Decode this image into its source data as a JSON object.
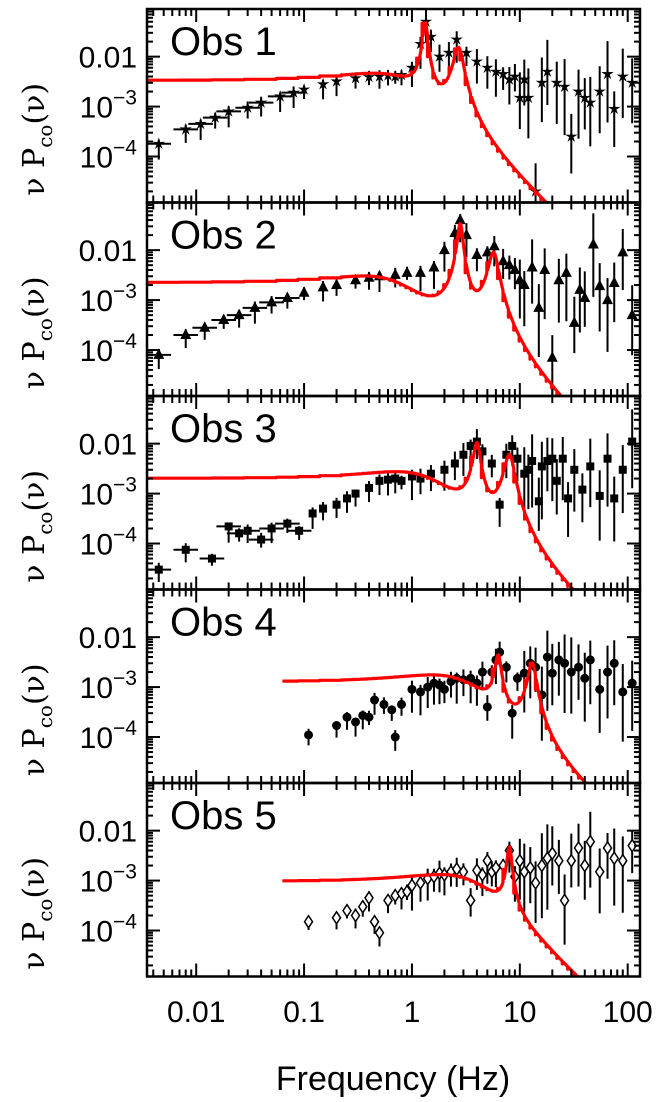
{
  "chart_data": {
    "type": "scatter",
    "xlabel": "Frequency (Hz)",
    "ylabel": "ν P_co(ν)",
    "xscale": "log",
    "yscale": "log",
    "xlim": [
      0.0035,
      130
    ],
    "ylim": [
      1.2e-05,
      0.09
    ],
    "x_ticks": [
      "0.01",
      "0.1",
      "1",
      "10",
      "100"
    ],
    "x_tick_values": [
      0.01,
      0.1,
      1,
      10,
      100
    ],
    "y_ticks": [
      {
        "base": "0.01",
        "exp": ""
      },
      {
        "base": "10",
        "exp": "−3"
      },
      {
        "base": "10",
        "exp": "−4"
      }
    ],
    "y_tick_values": [
      0.01,
      0.001,
      0.0001
    ],
    "colors": {
      "model": "#ff0000",
      "data": "#000000"
    },
    "panels": [
      {
        "label": "Obs 1",
        "marker": "star",
        "fmin": 0.0035,
        "points": [
          [
            0.0045,
            0.00018
          ],
          [
            0.008,
            0.00035
          ],
          [
            0.011,
            0.00045
          ],
          [
            0.015,
            0.0006
          ],
          [
            0.02,
            0.0008
          ],
          [
            0.03,
            0.00095
          ],
          [
            0.04,
            0.0012
          ],
          [
            0.06,
            0.0016
          ],
          [
            0.08,
            0.0019
          ],
          [
            0.1,
            0.0022
          ],
          [
            0.15,
            0.0028
          ],
          [
            0.2,
            0.0032
          ],
          [
            0.3,
            0.0037
          ],
          [
            0.4,
            0.0039
          ],
          [
            0.5,
            0.004
          ],
          [
            0.6,
            0.0042
          ],
          [
            0.7,
            0.004
          ],
          [
            0.8,
            0.0043
          ],
          [
            1.0,
            0.006
          ],
          [
            1.2,
            0.018
          ],
          [
            1.35,
            0.05
          ],
          [
            1.5,
            0.025
          ],
          [
            1.8,
            0.01
          ],
          [
            2.2,
            0.012
          ],
          [
            2.6,
            0.022
          ],
          [
            3.2,
            0.012
          ],
          [
            4,
            0.008
          ],
          [
            5,
            0.006
          ],
          [
            6,
            0.005
          ],
          [
            7,
            0.0045
          ],
          [
            8,
            0.0035
          ],
          [
            9,
            0.004
          ],
          [
            10,
            0.0015
          ],
          [
            11,
            0.0035
          ],
          [
            12,
            0.0015
          ],
          [
            14,
            2e-05
          ],
          [
            16,
            0.003
          ],
          [
            18,
            0.005
          ],
          [
            22,
            0.003
          ],
          [
            26,
            0.0025
          ],
          [
            30,
            0.00025
          ],
          [
            35,
            0.002
          ],
          [
            40,
            0.0015
          ],
          [
            45,
            0.0012
          ],
          [
            55,
            0.002
          ],
          [
            65,
            0.0045
          ],
          [
            75,
            0.0009
          ],
          [
            90,
            0.004
          ],
          [
            110,
            0.003
          ]
        ],
        "model": {
          "broad": [
            {
              "nu": 0.4,
              "Q": 0.3,
              "a": 0.0042
            }
          ],
          "qpo": [
            {
              "nu": 1.33,
              "Q": 10,
              "a": 0.047
            },
            {
              "nu": 2.7,
              "Q": 5,
              "a": 0.015
            }
          ]
        }
      },
      {
        "label": "Obs 2",
        "marker": "triangle",
        "fmin": 0.0035,
        "points": [
          [
            0.0045,
            8e-05
          ],
          [
            0.008,
            0.0002
          ],
          [
            0.012,
            0.00028
          ],
          [
            0.018,
            0.0004
          ],
          [
            0.025,
            0.0005
          ],
          [
            0.035,
            0.0007
          ],
          [
            0.05,
            0.0009
          ],
          [
            0.07,
            0.0011
          ],
          [
            0.1,
            0.0014
          ],
          [
            0.15,
            0.0018
          ],
          [
            0.2,
            0.002
          ],
          [
            0.3,
            0.0025
          ],
          [
            0.4,
            0.0028
          ],
          [
            0.5,
            0.003
          ],
          [
            0.7,
            0.0032
          ],
          [
            0.9,
            0.0035
          ],
          [
            1.2,
            0.0035
          ],
          [
            1.6,
            0.0045
          ],
          [
            2,
            0.01
          ],
          [
            2.5,
            0.022
          ],
          [
            2.8,
            0.04
          ],
          [
            3.2,
            0.02
          ],
          [
            4,
            0.008
          ],
          [
            5,
            0.009
          ],
          [
            5.8,
            0.012
          ],
          [
            7,
            0.006
          ],
          [
            8,
            0.005
          ],
          [
            9,
            0.004
          ],
          [
            10,
            0.0025
          ],
          [
            11,
            0.002
          ],
          [
            13,
            0.0045
          ],
          [
            15,
            0.0007
          ],
          [
            17,
            0.004
          ],
          [
            20,
            7e-05
          ],
          [
            23,
            0.0025
          ],
          [
            27,
            0.0035
          ],
          [
            32,
            0.00035
          ],
          [
            36,
            0.0016
          ],
          [
            40,
            0.0011
          ],
          [
            48,
            0.013
          ],
          [
            55,
            0.0019
          ],
          [
            65,
            0.001
          ],
          [
            75,
            0.0022
          ],
          [
            90,
            0.009
          ],
          [
            110,
            0.0005
          ]
        ],
        "model": {
          "broad": [
            {
              "nu": 0.35,
              "Q": 0.3,
              "a": 0.0028
            }
          ],
          "qpo": [
            {
              "nu": 2.8,
              "Q": 9,
              "a": 0.034
            },
            {
              "nu": 5.7,
              "Q": 5,
              "a": 0.009
            }
          ]
        }
      },
      {
        "label": "Obs 3",
        "marker": "square",
        "fmin": 0.0035,
        "points": [
          [
            0.0045,
            3e-05
          ],
          [
            0.008,
            7.5e-05
          ],
          [
            0.014,
            5e-05
          ],
          [
            0.02,
            0.00022
          ],
          [
            0.025,
            0.00016
          ],
          [
            0.03,
            0.00018
          ],
          [
            0.04,
            0.00012
          ],
          [
            0.05,
            0.0002
          ],
          [
            0.07,
            0.00025
          ],
          [
            0.09,
            0.00018
          ],
          [
            0.12,
            0.0004
          ],
          [
            0.15,
            0.0005
          ],
          [
            0.2,
            0.0006
          ],
          [
            0.25,
            0.0008
          ],
          [
            0.3,
            0.001
          ],
          [
            0.4,
            0.0013
          ],
          [
            0.5,
            0.0018
          ],
          [
            0.6,
            0.0019
          ],
          [
            0.7,
            0.002
          ],
          [
            0.8,
            0.0018
          ],
          [
            1.0,
            0.0022
          ],
          [
            1.2,
            0.002
          ],
          [
            1.5,
            0.0025
          ],
          [
            2,
            0.003
          ],
          [
            2.5,
            0.004
          ],
          [
            3,
            0.006
          ],
          [
            3.5,
            0.009
          ],
          [
            4,
            0.011
          ],
          [
            4.5,
            0.007
          ],
          [
            5.5,
            0.004
          ],
          [
            6.5,
            0.0006
          ],
          [
            7.5,
            0.006
          ],
          [
            8.5,
            0.009
          ],
          [
            9.5,
            0.005
          ],
          [
            11,
            0.0025
          ],
          [
            12,
            0.003
          ],
          [
            13,
            0.0045
          ],
          [
            15,
            0.0007
          ],
          [
            16,
            0.0035
          ],
          [
            18,
            0.0045
          ],
          [
            20,
            0.005
          ],
          [
            22,
            0.0018
          ],
          [
            25,
            0.005
          ],
          [
            28,
            0.0008
          ],
          [
            32,
            0.003
          ],
          [
            38,
            0.0012
          ],
          [
            45,
            0.0035
          ],
          [
            55,
            0.0009
          ],
          [
            65,
            0.005
          ],
          [
            75,
            0.0008
          ],
          [
            90,
            0.003
          ],
          [
            110,
            0.011
          ]
        ],
        "model": {
          "broad": [
            {
              "nu": 0.7,
              "Q": 0.3,
              "a": 0.0026
            }
          ],
          "qpo": [
            {
              "nu": 4.0,
              "Q": 7,
              "a": 0.01
            },
            {
              "nu": 8.0,
              "Q": 5,
              "a": 0.006
            }
          ]
        }
      },
      {
        "label": "Obs 4",
        "marker": "circle",
        "fmin": 0.063,
        "points": [
          [
            0.11,
            0.00011
          ],
          [
            0.2,
            0.00017
          ],
          [
            0.25,
            0.00025
          ],
          [
            0.3,
            0.0002
          ],
          [
            0.35,
            0.00027
          ],
          [
            0.4,
            0.00025
          ],
          [
            0.45,
            0.00055
          ],
          [
            0.55,
            0.00045
          ],
          [
            0.65,
            0.00035
          ],
          [
            0.7,
            0.0001
          ],
          [
            0.8,
            0.00045
          ],
          [
            1.0,
            0.0009
          ],
          [
            1.2,
            0.0008
          ],
          [
            1.4,
            0.001
          ],
          [
            1.6,
            0.0012
          ],
          [
            1.8,
            0.0011
          ],
          [
            2,
            0.0009
          ],
          [
            2.3,
            0.0013
          ],
          [
            2.6,
            0.0015
          ],
          [
            3,
            0.0014
          ],
          [
            3.5,
            0.0015
          ],
          [
            4,
            0.0012
          ],
          [
            4.5,
            0.002
          ],
          [
            5,
            0.0004
          ],
          [
            5.5,
            0.002
          ],
          [
            6,
            0.0035
          ],
          [
            6.5,
            0.005
          ],
          [
            7.5,
            0.0025
          ],
          [
            8.5,
            0.0003
          ],
          [
            9.5,
            0.0015
          ],
          [
            11,
            0.0019
          ],
          [
            12.5,
            0.003
          ],
          [
            14,
            0.0025
          ],
          [
            16,
            0.0007
          ],
          [
            18,
            0.004
          ],
          [
            20,
            0.0019
          ],
          [
            23,
            0.0035
          ],
          [
            26,
            0.003
          ],
          [
            30,
            0.002
          ],
          [
            35,
            0.0025
          ],
          [
            40,
            0.0015
          ],
          [
            45,
            0.0035
          ],
          [
            55,
            0.0009
          ],
          [
            65,
            0.002
          ],
          [
            75,
            0.003
          ],
          [
            90,
            0.0008
          ],
          [
            110,
            0.0012
          ]
        ],
        "model": {
          "broad": [
            {
              "nu": 1.5,
              "Q": 0.3,
              "a": 0.0017
            }
          ],
          "qpo": [
            {
              "nu": 6.3,
              "Q": 8,
              "a": 0.004
            },
            {
              "nu": 13,
              "Q": 6,
              "a": 0.003
            }
          ]
        }
      },
      {
        "label": "Obs 5",
        "marker": "diamond",
        "fmin": 0.063,
        "points": [
          [
            0.11,
            0.00015
          ],
          [
            0.2,
            0.00018
          ],
          [
            0.25,
            0.00025
          ],
          [
            0.3,
            0.0002
          ],
          [
            0.35,
            0.0003
          ],
          [
            0.4,
            0.00045
          ],
          [
            0.45,
            0.00015
          ],
          [
            0.5,
            9e-05
          ],
          [
            0.6,
            0.0004
          ],
          [
            0.7,
            0.0005
          ],
          [
            0.8,
            0.00055
          ],
          [
            0.9,
            0.0006
          ],
          [
            1.0,
            0.0008
          ],
          [
            1.2,
            0.0009
          ],
          [
            1.4,
            0.0011
          ],
          [
            1.6,
            0.0012
          ],
          [
            1.8,
            0.0014
          ],
          [
            2,
            0.0013
          ],
          [
            2.3,
            0.0015
          ],
          [
            2.6,
            0.0017
          ],
          [
            3,
            0.0015
          ],
          [
            3.5,
            0.0004
          ],
          [
            4,
            0.0016
          ],
          [
            4.5,
            0.0013
          ],
          [
            5,
            0.0025
          ],
          [
            5.5,
            0.0015
          ],
          [
            6,
            0.0018
          ],
          [
            7,
            0.002
          ],
          [
            8,
            0.004
          ],
          [
            9,
            0.0012
          ],
          [
            10,
            0.0025
          ],
          [
            11,
            0.0015
          ],
          [
            12.5,
            0.0018
          ],
          [
            14,
            0.0009
          ],
          [
            16,
            0.002
          ],
          [
            18,
            0.0028
          ],
          [
            20,
            0.0035
          ],
          [
            23,
            0.0025
          ],
          [
            26,
            0.0004
          ],
          [
            30,
            0.0025
          ],
          [
            35,
            0.0045
          ],
          [
            40,
            0.002
          ],
          [
            45,
            0.006
          ],
          [
            55,
            0.0015
          ],
          [
            65,
            0.0045
          ],
          [
            75,
            0.0028
          ],
          [
            90,
            0.0025
          ],
          [
            110,
            0.005
          ]
        ],
        "model": {
          "broad": [
            {
              "nu": 1.8,
              "Q": 0.3,
              "a": 0.0013
            }
          ],
          "qpo": [
            {
              "nu": 8.0,
              "Q": 10,
              "a": 0.0045
            }
          ]
        }
      }
    ]
  }
}
